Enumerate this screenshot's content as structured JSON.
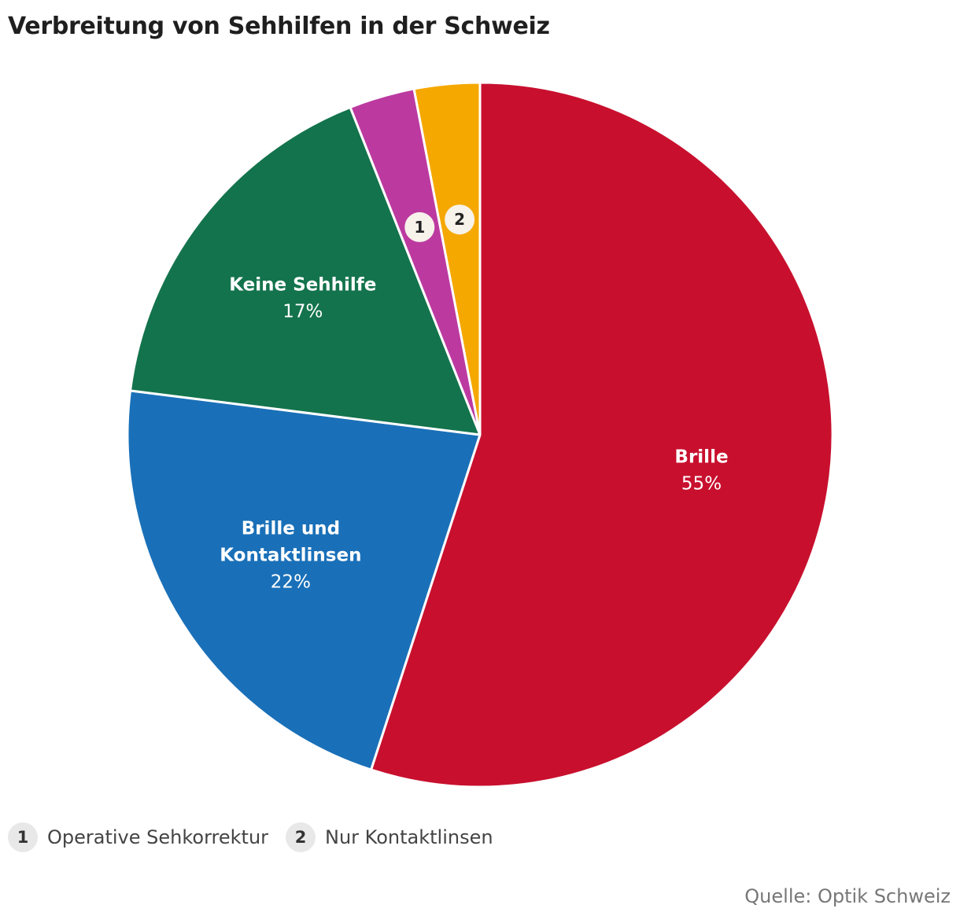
{
  "chart_data": {
    "type": "pie",
    "title": "Verbreitung von Sehhilfen in der Schweiz",
    "slices": [
      {
        "label": "Brille",
        "value_label": "55%",
        "value": 55,
        "color": "#c8102e"
      },
      {
        "label": "Brille und Kontaktlinsen",
        "label_lines": [
          "Brille und",
          "Kontaktlinsen"
        ],
        "value_label": "22%",
        "value": 22,
        "color": "#1a70b8"
      },
      {
        "label": "Keine Sehhilfe",
        "label_lines": [
          "Keine Sehhilfe"
        ],
        "value_label": "17%",
        "value": 17,
        "color": "#13734c"
      },
      {
        "badge": "1",
        "label": "Operative Sehkorrektur",
        "value": 3,
        "color": "#bc3aa0"
      },
      {
        "badge": "2",
        "label": "Nur Kontaktlinsen",
        "value": 3,
        "color": "#f5a800"
      }
    ],
    "legend": [
      {
        "badge": "1",
        "label": "Operative Sehkorrektur"
      },
      {
        "badge": "2",
        "label": "Nur Kontaktlinsen"
      }
    ],
    "source": "Quelle: Optik Schweiz"
  }
}
